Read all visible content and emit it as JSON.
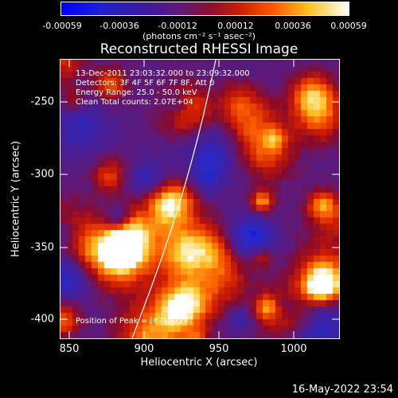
{
  "colorbar": {
    "ticks": [
      "-0.00059",
      "-0.00036",
      "-0.00012",
      "0.00012",
      "0.00036",
      "0.00059"
    ],
    "units": "(photons cm⁻² s⁻¹ asec⁻²)"
  },
  "plot": {
    "title": "Reconstructed RHESSI Image",
    "info_lines": [
      "13-Dec-2011 23:03:32.000 to 23:09:32.000",
      "Detectors: 3F 4F 5F 6F 7F 8F, Att 0",
      "Energy Range: 25.0 - 50.0 keV",
      "Clean     Total counts: 2.07E+04"
    ],
    "peak_label": "Position of Peak = [871,-228]",
    "xlabel": "Heliocentric X (arcsec)",
    "ylabel": "Heliocentric Y (arcsec)",
    "xticks": [
      "850",
      "900",
      "950",
      "1000"
    ],
    "yticks": [
      "-250",
      "-300",
      "-350",
      "-400"
    ],
    "xlim": [
      840,
      1030
    ],
    "ylim": [
      -415,
      -225
    ]
  },
  "footer": {
    "timestamp": "16-May-2022 23:54"
  }
}
